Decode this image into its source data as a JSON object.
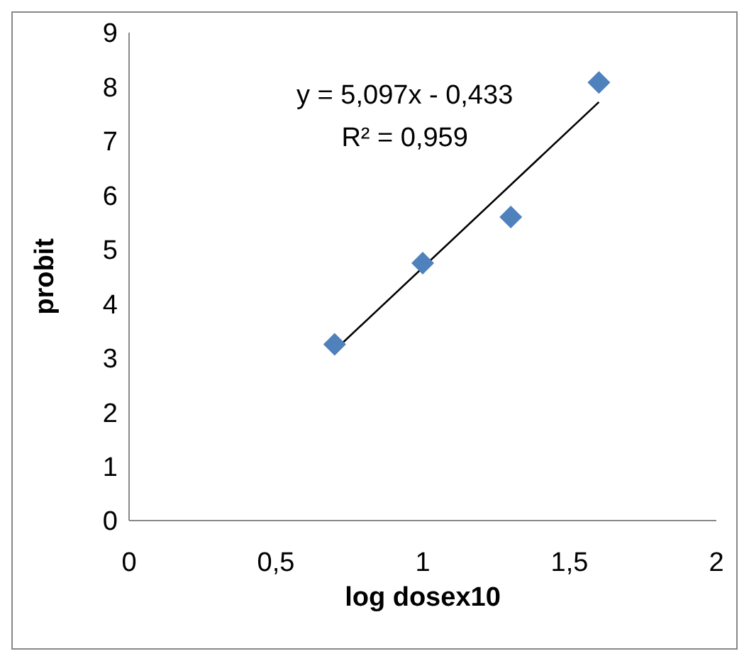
{
  "chart_data": {
    "type": "scatter",
    "xlabel": "log dosex10",
    "ylabel": "probit",
    "x": [
      0.7,
      1,
      1.3,
      1.6
    ],
    "series": [
      {
        "color": "#4f81bd",
        "values": [
          3.25,
          4.75,
          5.6,
          8.08
        ],
        "marker": "diamond"
      },
      {
        "type": "line",
        "color": "#000000",
        "x": [
          0.7,
          1.6
        ],
        "values": [
          3.14,
          7.72
        ]
      }
    ],
    "xlim": [
      0,
      2
    ],
    "xticks": [
      0,
      {
        "value": 0.5,
        "label": "0,5"
      },
      1,
      {
        "value": 1.5,
        "label": "1,5"
      },
      2
    ],
    "ylim": [
      0,
      9
    ],
    "yticks": [
      0,
      1,
      2,
      3,
      4,
      5,
      6,
      7,
      8,
      9
    ],
    "annotations": [
      "y = 5,097x - 0,433",
      "R² = 0,959"
    ]
  }
}
